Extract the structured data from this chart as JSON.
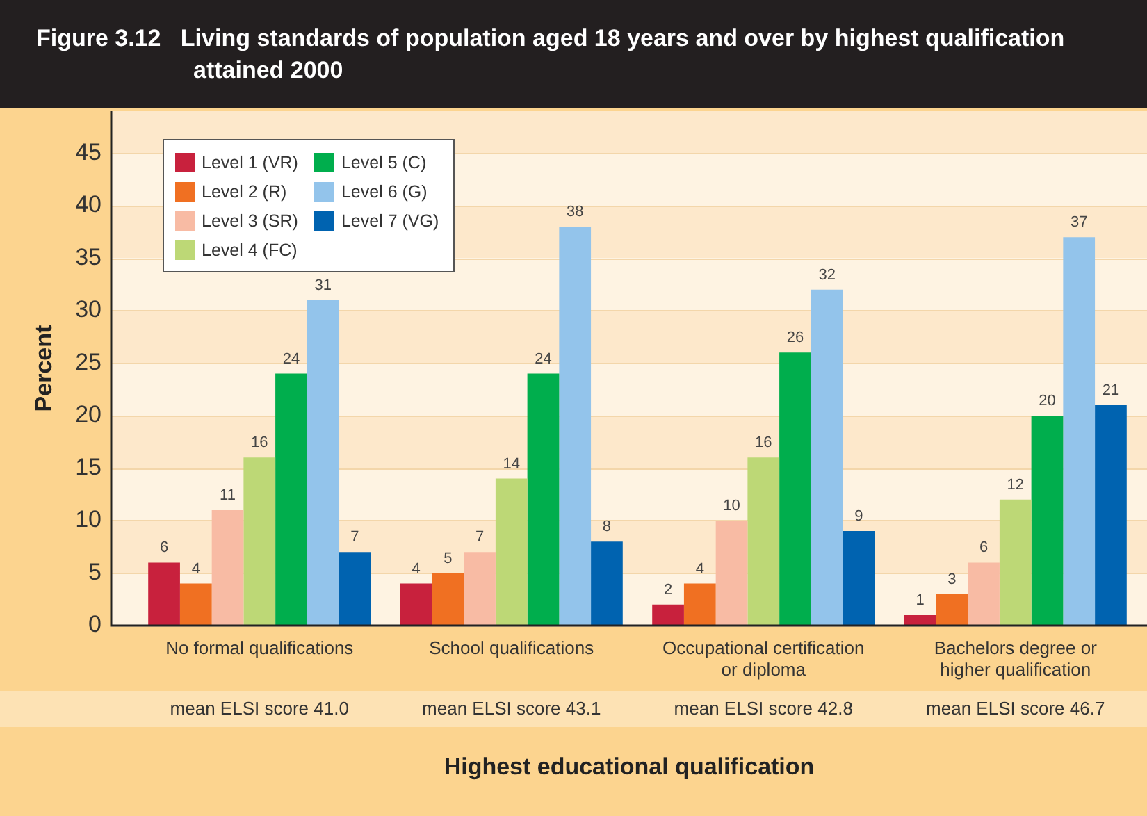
{
  "chart_data": {
    "type": "bar",
    "title": "Figure 3.12   Living standards of population aged 18 years and over by highest qualification attained 2000",
    "xlabel": "Highest educational qualification",
    "ylabel": "Percent",
    "categories": [
      "No formal qualifications",
      "School qualifications",
      "Occupational certification\nor diploma",
      "Bachelors degree or\nhigher qualification"
    ],
    "series": [
      {
        "name": "Level 1 (VR)",
        "color": "#c8213d",
        "values": [
          6,
          4,
          2,
          1
        ]
      },
      {
        "name": "Level 2 (R)",
        "color": "#f07022",
        "values": [
          4,
          5,
          4,
          3
        ]
      },
      {
        "name": "Level 3 (SR)",
        "color": "#f8bba4",
        "values": [
          11,
          7,
          10,
          6
        ]
      },
      {
        "name": "Level 4 (FC)",
        "color": "#bdd876",
        "values": [
          16,
          14,
          16,
          12
        ]
      },
      {
        "name": "Level 5 (C)",
        "color": "#00ae4d",
        "values": [
          24,
          24,
          26,
          20
        ]
      },
      {
        "name": "Level 6 (G)",
        "color": "#93c4eb",
        "values": [
          31,
          38,
          32,
          37
        ]
      },
      {
        "name": "Level 7 (VG)",
        "color": "#0063b0",
        "values": [
          7,
          8,
          9,
          21
        ]
      }
    ],
    "ylim": [
      0,
      49
    ],
    "yticks": [
      0,
      5,
      10,
      15,
      20,
      25,
      30,
      35,
      40,
      45
    ],
    "grid": "y",
    "legend": "top left",
    "data_labels": true,
    "annotations": [
      "mean ELSI score 41.0",
      "mean ELSI score 43.1",
      "mean ELSI score 42.8",
      "mean ELSI score 46.7"
    ]
  }
}
